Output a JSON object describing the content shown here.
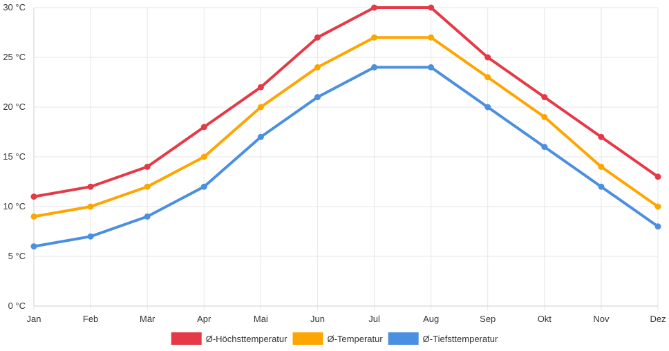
{
  "chart_data": {
    "type": "line",
    "categories": [
      "Jan",
      "Feb",
      "Mär",
      "Apr",
      "Mai",
      "Jun",
      "Jul",
      "Aug",
      "Sep",
      "Okt",
      "Nov",
      "Dez"
    ],
    "series": [
      {
        "name": "Ø-Höchsttemperatur",
        "color": "#e53947",
        "values": [
          11,
          12,
          14,
          18,
          22,
          27,
          30,
          30,
          25,
          21,
          17,
          13
        ]
      },
      {
        "name": "Ø-Temperatur",
        "color": "#ffa500",
        "values": [
          9,
          10,
          12,
          15,
          20,
          24,
          27,
          27,
          23,
          19,
          14,
          10
        ]
      },
      {
        "name": "Ø-Tiefsttemperatur",
        "color": "#4a8fe0",
        "values": [
          6,
          7,
          9,
          12,
          17,
          21,
          24,
          24,
          20,
          16,
          12,
          8
        ]
      }
    ],
    "y_ticks": [
      "0 °C",
      "5 °C",
      "10 °C",
      "15 °C",
      "20 °C",
      "25 °C",
      "30 °C"
    ],
    "ylim": [
      0,
      30
    ],
    "grid": true,
    "legend_position": "bottom"
  }
}
